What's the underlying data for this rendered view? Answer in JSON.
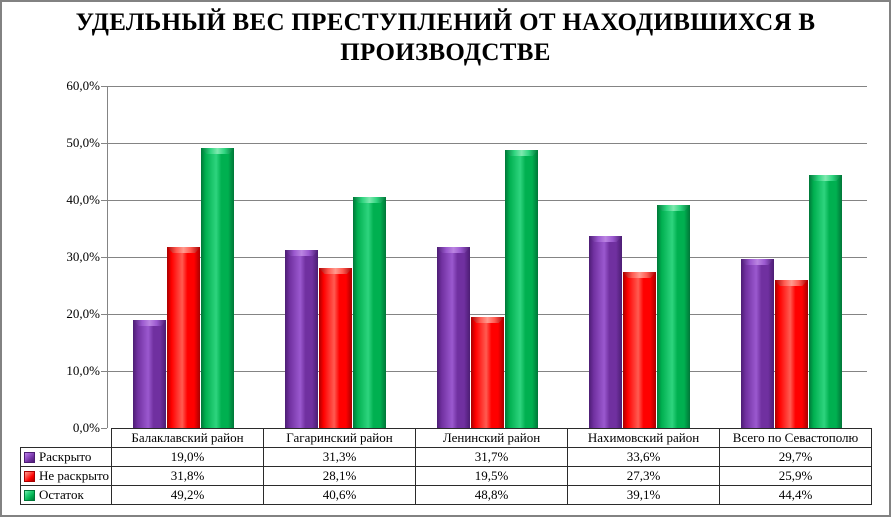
{
  "title": "УДЕЛЬНЫЙ ВЕС ПРЕСТУПЛЕНИЙ ОТ НАХОДИВШИХСЯ В ПРОИЗВОДСТВЕ",
  "colors": {
    "gridline": "#848484",
    "axis": "#848484",
    "table_border": "#2B2B2B",
    "outer_border": "#828282",
    "background": "#FFFFFF",
    "text": "#000000"
  },
  "chart_data": {
    "type": "bar",
    "title": "УДЕЛЬНЫЙ ВЕС ПРЕСТУПЛЕНИЙ ОТ НАХОДИВШИХСЯ В ПРОИЗВОДСТВЕ",
    "categories": [
      "Балаклавский район",
      "Гагаринский район",
      "Ленинский район",
      "Нахимовский район",
      "Всего по Севастополю"
    ],
    "series": [
      {
        "name": "Раскрыто",
        "values": [
          19.0,
          31.3,
          31.7,
          33.6,
          29.7
        ],
        "labels": [
          "19,0%",
          "31,3%",
          "31,7%",
          "33,6%",
          "29,7%"
        ],
        "color": "#7030A0",
        "color_light": "#9B59CF",
        "color_dark": "#4C1D73",
        "color_highlight": "#BB85E2"
      },
      {
        "name": "Не раскрыто",
        "values": [
          31.8,
          28.1,
          19.5,
          27.3,
          25.9
        ],
        "labels": [
          "31,8%",
          "28,1%",
          "19,5%",
          "27,3%",
          "25,9%"
        ],
        "color": "#FF0000",
        "color_light": "#FF5B51",
        "color_dark": "#A80000",
        "color_highlight": "#FF9B8F"
      },
      {
        "name": "Остаток",
        "values": [
          49.2,
          40.6,
          48.8,
          39.1,
          44.4
        ],
        "labels": [
          "49,2%",
          "40,6%",
          "48,8%",
          "39,1%",
          "44,4%"
        ],
        "color": "#00B050",
        "color_light": "#2ED47E",
        "color_dark": "#007638",
        "color_highlight": "#7FE9B0"
      }
    ],
    "xlabel": "",
    "ylabel": "",
    "ylim": [
      0,
      60
    ],
    "ytick_step": 10,
    "ytick_labels": [
      "0,0%",
      "10,0%",
      "20,0%",
      "30,0%",
      "40,0%",
      "50,0%",
      "60,0%"
    ],
    "grid": true,
    "legend_position": "bottom-table-left"
  }
}
